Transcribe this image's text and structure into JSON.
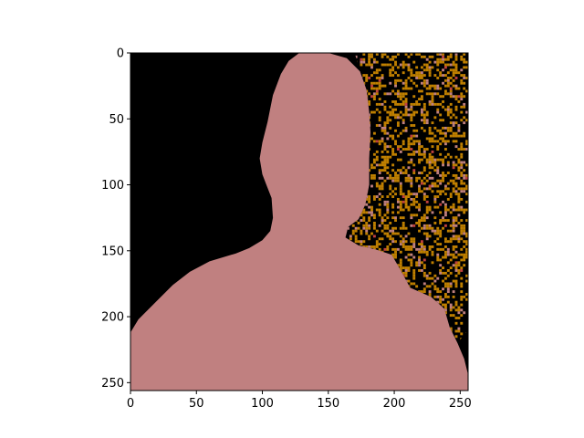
{
  "chart_data": {
    "type": "heatmap",
    "title": "",
    "xlabel": "",
    "ylabel": "",
    "xlim": [
      0,
      256
    ],
    "ylim": [
      256,
      0
    ],
    "x_ticks": [
      0,
      50,
      100,
      150,
      200,
      250
    ],
    "y_ticks": [
      0,
      50,
      100,
      150,
      200,
      250
    ],
    "x_tick_labels": [
      "0",
      "50",
      "100",
      "150",
      "200",
      "250"
    ],
    "y_tick_labels": [
      "0",
      "50",
      "100",
      "150",
      "200",
      "250"
    ],
    "grid": false,
    "legend": "none",
    "classes": [
      {
        "name": "background",
        "color": "#000000"
      },
      {
        "name": "person",
        "color": "#c08080"
      },
      {
        "name": "texture",
        "color": "#c08000"
      },
      {
        "name": "accent",
        "color": "#c04040"
      }
    ],
    "person_silhouette": [
      [
        128,
        0
      ],
      [
        150,
        0
      ],
      [
        164,
        4
      ],
      [
        174,
        14
      ],
      [
        179,
        28
      ],
      [
        181,
        45
      ],
      [
        182,
        60
      ],
      [
        181,
        80
      ],
      [
        181,
        100
      ],
      [
        178,
        115
      ],
      [
        173,
        126
      ],
      [
        165,
        132
      ],
      [
        163,
        140
      ],
      [
        173,
        146
      ],
      [
        186,
        149
      ],
      [
        198,
        153
      ],
      [
        205,
        165
      ],
      [
        212,
        178
      ],
      [
        228,
        185
      ],
      [
        238,
        194
      ],
      [
        242,
        208
      ],
      [
        248,
        220
      ],
      [
        253,
        232
      ],
      [
        256,
        244
      ],
      [
        256,
        256
      ],
      [
        0,
        256
      ],
      [
        0,
        212
      ],
      [
        6,
        202
      ],
      [
        20,
        188
      ],
      [
        32,
        176
      ],
      [
        45,
        166
      ],
      [
        60,
        158
      ],
      [
        80,
        152
      ],
      [
        90,
        148
      ],
      [
        100,
        142
      ],
      [
        106,
        135
      ],
      [
        108,
        125
      ],
      [
        107,
        110
      ],
      [
        103,
        100
      ],
      [
        100,
        92
      ],
      [
        98,
        80
      ],
      [
        100,
        68
      ],
      [
        104,
        52
      ],
      [
        108,
        32
      ],
      [
        114,
        16
      ],
      [
        120,
        6
      ],
      [
        128,
        0
      ]
    ],
    "texture_region": [
      [
        170,
        0
      ],
      [
        256,
        0
      ],
      [
        256,
        210
      ],
      [
        248,
        220
      ],
      [
        242,
        208
      ],
      [
        238,
        194
      ],
      [
        228,
        185
      ],
      [
        212,
        178
      ],
      [
        205,
        165
      ],
      [
        198,
        153
      ],
      [
        186,
        149
      ],
      [
        173,
        146
      ],
      [
        163,
        140
      ],
      [
        165,
        132
      ],
      [
        173,
        126
      ],
      [
        178,
        115
      ],
      [
        181,
        100
      ],
      [
        181,
        80
      ],
      [
        182,
        60
      ],
      [
        181,
        45
      ],
      [
        179,
        28
      ],
      [
        174,
        14
      ],
      [
        170,
        0
      ]
    ],
    "texture_seed": 7
  }
}
